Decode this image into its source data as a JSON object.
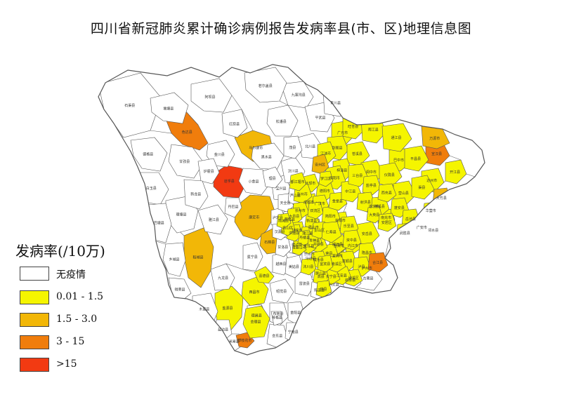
{
  "title": "四川省新冠肺炎累计确诊病例报告发病率县(市、区)地理信息图",
  "legend": {
    "title": "发病率(/10万)",
    "items": [
      {
        "label": "无疫情",
        "color": "#ffffff"
      },
      {
        "label": "0.01 - 1.5",
        "color": "#f5f500"
      },
      {
        "label": "1.5 - 3.0",
        "color": "#f2b707"
      },
      {
        "label": "3 - 15",
        "color": "#f07d0c"
      },
      {
        "label": ">15",
        "color": "#f23a12"
      }
    ]
  },
  "regions": [
    {
      "name": "石渠县",
      "class": 0
    },
    {
      "name": "色达县",
      "class": 3
    },
    {
      "name": "马尔康市",
      "class": 2
    },
    {
      "name": "道孚县",
      "class": 4
    },
    {
      "name": "康定市",
      "class": 2
    },
    {
      "name": "稻城县",
      "class": 2
    },
    {
      "name": "石棉县",
      "class": 2
    },
    {
      "name": "盐源县",
      "class": 1
    },
    {
      "name": "西昌市",
      "class": 1
    },
    {
      "name": "广元市",
      "class": 1
    },
    {
      "name": "巴中市",
      "class": 1
    },
    {
      "name": "达州市",
      "class": 1
    },
    {
      "name": "成都市",
      "class": 1
    },
    {
      "name": "南充市",
      "class": 1
    },
    {
      "name": "宜宾市",
      "class": 1
    },
    {
      "name": "泸州市",
      "class": 1
    },
    {
      "name": "自贡市",
      "class": 1
    },
    {
      "name": "乐山市",
      "class": 1
    },
    {
      "name": "眉山市",
      "class": 1
    },
    {
      "name": "遂宁市",
      "class": 1
    },
    {
      "name": "内江市",
      "class": 1
    },
    {
      "name": "资阳市",
      "class": 1
    },
    {
      "name": "宣汉县",
      "class": 3
    },
    {
      "name": "万源市",
      "class": 2
    },
    {
      "name": "大竹县",
      "class": 2
    },
    {
      "name": "邻水县",
      "class": 2
    },
    {
      "name": "阿坝县",
      "class": 0
    },
    {
      "name": "壤塘县",
      "class": 0
    },
    {
      "name": "甘孜县",
      "class": 0
    },
    {
      "name": "德格县",
      "class": 0
    },
    {
      "name": "白玉县",
      "class": 0
    },
    {
      "name": "理塘县",
      "class": 0
    },
    {
      "name": "巴塘县",
      "class": 0
    },
    {
      "name": "乡城县",
      "class": 0
    },
    {
      "name": "得荣县",
      "class": 0
    },
    {
      "name": "九龙县",
      "class": 0
    },
    {
      "name": "木里县",
      "class": 0
    },
    {
      "name": "红原县",
      "class": 0
    },
    {
      "name": "松潘县",
      "class": 0
    },
    {
      "name": "九寨沟县",
      "class": 0
    },
    {
      "name": "若尔盖县",
      "class": 0
    },
    {
      "name": "黑水县",
      "class": 0
    },
    {
      "name": "金川县",
      "class": 0
    },
    {
      "name": "小金县",
      "class": 0
    },
    {
      "name": "丹巴县",
      "class": 0
    },
    {
      "name": "炉霍县",
      "class": 0
    },
    {
      "name": "新龙县",
      "class": 0
    },
    {
      "name": "雅江县",
      "class": 0
    },
    {
      "name": "泸定县",
      "class": 0
    },
    {
      "name": "宝兴县",
      "class": 0
    },
    {
      "name": "冕宁县",
      "class": 0
    },
    {
      "name": "越西县",
      "class": 0
    },
    {
      "name": "昭觉县",
      "class": 0
    },
    {
      "name": "布拖县",
      "class": 0
    },
    {
      "name": "会东县",
      "class": 0
    },
    {
      "name": "雷波县",
      "class": 0
    },
    {
      "name": "平武县",
      "class": 0
    },
    {
      "name": "北川县",
      "class": 0
    },
    {
      "name": "汶川县",
      "class": 0
    },
    {
      "name": "理县",
      "class": 0
    },
    {
      "name": "茂县",
      "class": 0
    },
    {
      "name": "马边县",
      "class": 0
    },
    {
      "name": "峨边县",
      "class": 0
    },
    {
      "name": "甘洛县",
      "class": 0
    },
    {
      "name": "美姑县",
      "class": 0
    },
    {
      "name": "金阳县",
      "class": 0
    },
    {
      "name": "宁南县",
      "class": 0
    },
    {
      "name": "普格县",
      "class": 0
    },
    {
      "name": "德昌县",
      "class": 0
    },
    {
      "name": "米易县",
      "class": 0
    },
    {
      "name": "盐边县",
      "class": 0
    },
    {
      "name": "攀枝花市",
      "class": 3
    },
    {
      "name": "古蔺县",
      "class": 0
    },
    {
      "name": "叙永县",
      "class": 0
    },
    {
      "name": "兴文县",
      "class": 0
    },
    {
      "name": "筠连县",
      "class": 0
    },
    {
      "name": "屏山县",
      "class": 0
    },
    {
      "name": "汉源县",
      "class": 0
    },
    {
      "name": "荥经县",
      "class": 0
    },
    {
      "name": "天全县",
      "class": 0
    },
    {
      "name": "芦山县",
      "class": 0
    },
    {
      "name": "青川县",
      "class": 0
    },
    {
      "name": "旺苍县",
      "class": 1
    },
    {
      "name": "南江县",
      "class": 1
    },
    {
      "name": "通江县",
      "class": 1
    },
    {
      "name": "平昌县",
      "class": 1
    },
    {
      "name": "剑阁县",
      "class": 1
    },
    {
      "name": "苍溪县",
      "class": 1
    },
    {
      "name": "阆中市",
      "class": 1
    },
    {
      "name": "仪陇县",
      "class": 1
    },
    {
      "name": "营山县",
      "class": 1
    },
    {
      "name": "渠县",
      "class": 1
    },
    {
      "name": "开江县",
      "class": 1
    },
    {
      "name": "梓潼县",
      "class": 1
    },
    {
      "name": "江油市",
      "class": 1
    },
    {
      "name": "绵阳市",
      "class": 1
    },
    {
      "name": "德阳市",
      "class": 1
    },
    {
      "name": "广汉市",
      "class": 1
    },
    {
      "name": "什邡市",
      "class": 1
    },
    {
      "name": "彭州市",
      "class": 1
    },
    {
      "name": "都江堰市",
      "class": 1
    },
    {
      "name": "崇州市",
      "class": 1
    },
    {
      "name": "大邑县",
      "class": 1
    },
    {
      "name": "邛崃市",
      "class": 1
    },
    {
      "name": "蒲江县",
      "class": 1
    },
    {
      "name": "新津县",
      "class": 1
    },
    {
      "name": "双流区",
      "class": 1
    },
    {
      "name": "简阳市",
      "class": 1
    },
    {
      "name": "金堂县",
      "class": 1
    },
    {
      "name": "中江县",
      "class": 1
    },
    {
      "name": "三台县",
      "class": 1
    },
    {
      "name": "盐亭县",
      "class": 1
    },
    {
      "name": "射洪县",
      "class": 1
    },
    {
      "name": "蓬溪县",
      "class": 1
    },
    {
      "name": "西充县",
      "class": 1
    },
    {
      "name": "蓬安县",
      "class": 1
    },
    {
      "name": "岳池县",
      "class": 1
    },
    {
      "name": "武胜县",
      "class": 1
    },
    {
      "name": "广安市",
      "class": 1
    },
    {
      "name": "华蓥市",
      "class": 1
    },
    {
      "name": "安岳县",
      "class": 1
    },
    {
      "name": "乐至县",
      "class": 1
    },
    {
      "name": "大英县",
      "class": 1
    },
    {
      "name": "安居区",
      "class": 1
    },
    {
      "name": "威远县",
      "class": 1
    },
    {
      "name": "资中县",
      "class": 1
    },
    {
      "name": "隆昌市",
      "class": 1
    },
    {
      "name": "荣县",
      "class": 1
    },
    {
      "name": "富顺县",
      "class": 1
    },
    {
      "name": "井研县",
      "class": 1
    },
    {
      "name": "犍为县",
      "class": 1
    },
    {
      "name": "沐川县",
      "class": 1
    },
    {
      "name": "夹江县",
      "class": 1
    },
    {
      "name": "峨眉山市",
      "class": 1
    },
    {
      "name": "洪雅县",
      "class": 1
    },
    {
      "name": "丹棱县",
      "class": 1
    },
    {
      "name": "青神县",
      "class": 1
    },
    {
      "name": "彭山区",
      "class": 1
    },
    {
      "name": "仁寿县",
      "class": 1
    },
    {
      "name": "名山区",
      "class": 1
    },
    {
      "name": "雨城区",
      "class": 1
    },
    {
      "name": "泸县",
      "class": 1
    },
    {
      "name": "合江县",
      "class": 3
    },
    {
      "name": "纳溪区",
      "class": 1
    },
    {
      "name": "江安县",
      "class": 1
    },
    {
      "name": "长宁县",
      "class": 1
    },
    {
      "name": "高县",
      "class": 1
    },
    {
      "name": "珙县",
      "class": 1
    },
    {
      "name": "南溪区",
      "class": 1
    },
    {
      "name": "宜宾县",
      "class": 1
    },
    {
      "name": "会理县",
      "class": 1
    },
    {
      "name": "喜德县",
      "class": 1
    },
    {
      "name": "安州区",
      "class": 2
    },
    {
      "name": "罗江区",
      "class": 1
    }
  ]
}
